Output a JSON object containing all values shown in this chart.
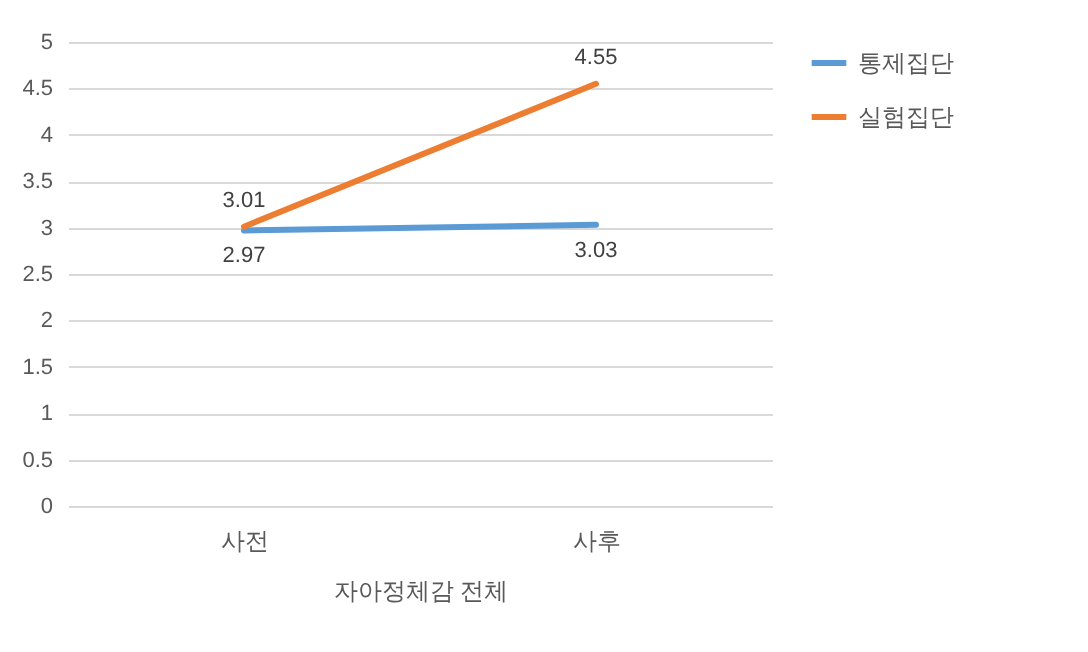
{
  "chart_data": {
    "type": "line",
    "xlabel": "자아정체감 전체",
    "categories": [
      "사전",
      "사후"
    ],
    "series": [
      {
        "name": "통제집단",
        "color": "#5b9bd5",
        "values": [
          2.97,
          3.03
        ]
      },
      {
        "name": "실험집단",
        "color": "#ed7d31",
        "values": [
          3.01,
          4.55
        ]
      }
    ],
    "ylim": [
      0,
      5
    ],
    "yticks": [
      0,
      0.5,
      1,
      1.5,
      2,
      2.5,
      3,
      3.5,
      4,
      4.5,
      5
    ],
    "grid": "y",
    "legend": "right",
    "data_labels": true,
    "marker": "none",
    "line_style": "solid"
  }
}
